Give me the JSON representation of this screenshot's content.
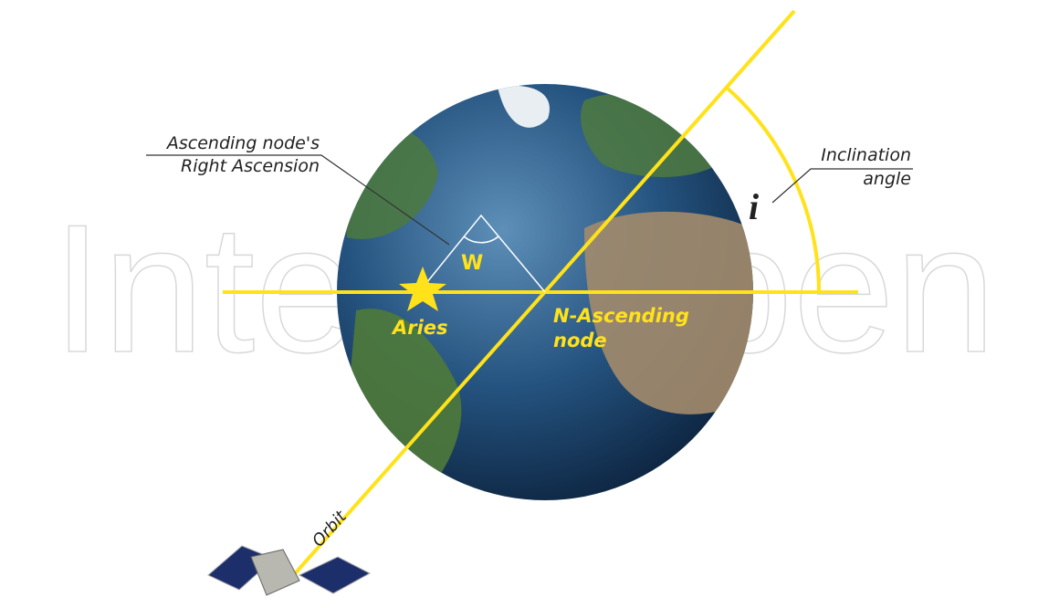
{
  "watermark": "IntechOpen",
  "labels": {
    "right_ascension": [
      "Ascending node's",
      "Right Ascension"
    ],
    "inclination": [
      "Inclination",
      "angle"
    ],
    "inclination_symbol": "i",
    "omega": "W",
    "aries": "Aries",
    "node": [
      "N-Ascending",
      "node"
    ],
    "orbit": "Orbit"
  }
}
